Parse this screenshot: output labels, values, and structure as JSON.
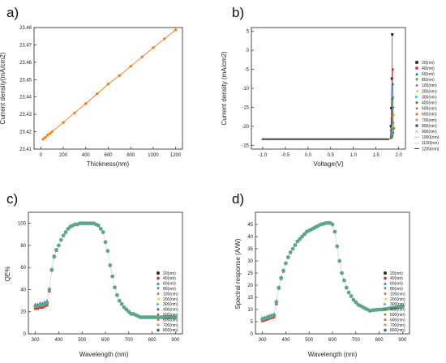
{
  "colors": {
    "orange": "#ee7a12",
    "cycle": [
      "#222222",
      "#e0302a",
      "#2f5fd6",
      "#2ca02c",
      "#9467bd",
      "#eec900",
      "#11bde0",
      "#7a7a3d",
      "#5a3b5a",
      "#c07a3a",
      "#d28fb0",
      "#2a6f6f",
      "#bfbfbf",
      "#e6b48a",
      "#c7c7c7"
    ]
  },
  "chart_data": [
    {
      "panel": "a)",
      "type": "line",
      "xlabel": "Thickness(nm)",
      "ylabel": "Current density(mA/cm2)",
      "xlim": [
        -60,
        1260
      ],
      "ylim": [
        23.41,
        23.48
      ],
      "xticks": [
        0,
        200,
        400,
        600,
        800,
        1000,
        1200
      ],
      "yticks": [
        23.41,
        23.42,
        23.43,
        23.44,
        23.45,
        23.46,
        23.47,
        23.48
      ],
      "x": [
        20,
        40,
        60,
        80,
        100,
        200,
        300,
        400,
        500,
        600,
        700,
        800,
        900,
        1000,
        1100,
        1200
      ],
      "y": [
        23.4157,
        23.4167,
        23.4179,
        23.4189,
        23.42,
        23.4253,
        23.4308,
        23.4362,
        23.4418,
        23.4475,
        23.4523,
        23.4577,
        23.463,
        23.4684,
        23.4735,
        23.4787
      ]
    },
    {
      "panel": "b)",
      "type": "scatter",
      "xlabel": "Voltage(V)",
      "ylabel": "Current density (mA/cm2)",
      "xlim": [
        -1.25,
        2.15
      ],
      "ylim": [
        -26,
        6
      ],
      "xticks": [
        -1.0,
        -0.5,
        0.0,
        0.5,
        1.0,
        1.5,
        2.0
      ],
      "xtick_labels": [
        "-1.0",
        "-0.5",
        "0.0",
        "0.5",
        "1.0",
        "1.5",
        "2.0"
      ],
      "yticks": [
        5,
        0,
        -5,
        -10,
        -15,
        -20,
        -25
      ],
      "jsc": -23.4,
      "legend": [
        "20(nm)",
        "40(nm)",
        "60(nm)",
        "80(nm)",
        "100(nm)",
        "200(nm)",
        "300(nm)",
        "400(nm)",
        "500(nm)",
        "600(nm)",
        "700(nm)",
        "800(nm)",
        "900(nm)",
        "1000(nm)",
        "1100(nm)",
        "1200(nm)"
      ],
      "legend_markers": [
        "square",
        "circle",
        "triangle-up",
        "triangle-down",
        "diamond",
        "triangle-left",
        "triangle-right",
        "hexagon",
        "star",
        "pentagon",
        "octagon",
        "circle",
        "cross",
        "line",
        "line",
        "line"
      ],
      "turn_points_v": [
        1.86,
        1.87,
        1.875,
        1.88,
        1.885,
        1.89,
        1.895,
        1.9
      ],
      "max_current": [
        4.2,
        -5.0,
        -8.8,
        -12.5,
        -15.0,
        -17.0,
        -19.0,
        -20.5
      ]
    },
    {
      "panel": "c)",
      "type": "scatter",
      "xlabel": "Wavelength (nm)",
      "ylabel": "QE%",
      "xlim": [
        270,
        930
      ],
      "ylim": [
        0,
        110
      ],
      "xticks": [
        300,
        400,
        500,
        600,
        700,
        800,
        900
      ],
      "yticks": [
        0,
        20,
        40,
        60,
        80,
        100
      ],
      "legend": [
        "20(nm)",
        "40(nm)",
        "60(nm)",
        "80(nm)",
        "100(nm)",
        "200(nm)",
        "300(nm)",
        "400(nm)",
        "500(nm)",
        "600(nm)",
        "700(nm)",
        "800(nm)"
      ],
      "legend_markers": [
        "square",
        "circle",
        "triangle-up",
        "triangle-down",
        "diamond",
        "triangle-left",
        "triangle-right",
        "hexagon",
        "star",
        "pentagon",
        "octagon",
        "circle"
      ],
      "x": [
        300,
        310,
        320,
        330,
        340,
        350,
        360,
        370,
        380,
        390,
        400,
        410,
        420,
        430,
        440,
        450,
        460,
        470,
        480,
        490,
        500,
        510,
        520,
        530,
        540,
        550,
        560,
        570,
        580,
        590,
        600,
        610,
        620,
        630,
        640,
        650,
        660,
        670,
        680,
        690,
        700,
        710,
        720,
        730,
        740,
        750,
        760,
        770,
        780,
        790,
        800,
        810,
        820,
        830,
        840,
        850,
        860,
        870,
        880,
        890,
        900
      ],
      "y": [
        25,
        25,
        26,
        26,
        27,
        28,
        40,
        58,
        70,
        76,
        80,
        85,
        89,
        92,
        95,
        97,
        98,
        99,
        99,
        100,
        100,
        100,
        100,
        100,
        100,
        100,
        99,
        98,
        95,
        92,
        83,
        75,
        62,
        52,
        42,
        35,
        30,
        27,
        24,
        22,
        20,
        18,
        18,
        17,
        16,
        15,
        15,
        15,
        15,
        15,
        15,
        15,
        15,
        15,
        15,
        15,
        15,
        15,
        15,
        15,
        15
      ],
      "spread": [
        3,
        3,
        3,
        3,
        3,
        3,
        2,
        1,
        1,
        1,
        0,
        0,
        0,
        0,
        0,
        0,
        0,
        0,
        0,
        0,
        0,
        0,
        0,
        0,
        0,
        0,
        0,
        0,
        0,
        0,
        0,
        0,
        0,
        0,
        0,
        0,
        0,
        0,
        0,
        0,
        0,
        0,
        0,
        0,
        0,
        0,
        0,
        0,
        0,
        0,
        0,
        0,
        0,
        0,
        0,
        0,
        0,
        0,
        0,
        0,
        0
      ]
    },
    {
      "panel": "d)",
      "type": "scatter",
      "xlabel": "Wavelength (nm)",
      "ylabel": "Spectral response (A/W)",
      "xlim": [
        270,
        930
      ],
      "ylim": [
        0,
        50
      ],
      "xticks": [
        300,
        400,
        500,
        600,
        700,
        800,
        900
      ],
      "yticks": [
        0,
        5,
        10,
        15,
        20,
        25,
        30,
        35,
        40,
        45
      ],
      "legend": [
        "20(nm)",
        "40(nm)",
        "60(nm)",
        "80(nm)",
        "100(nm)",
        "200(nm)",
        "300(nm)",
        "400(nm)",
        "500(nm)",
        "600(nm)",
        "700(nm)",
        "800(nm)"
      ],
      "legend_markers": [
        "square",
        "circle",
        "triangle-up",
        "triangle-down",
        "diamond",
        "triangle-left",
        "triangle-right",
        "hexagon",
        "star",
        "pentagon",
        "octagon",
        "circle"
      ],
      "x": [
        300,
        310,
        320,
        330,
        340,
        350,
        360,
        370,
        380,
        390,
        400,
        410,
        420,
        430,
        440,
        450,
        460,
        470,
        480,
        490,
        500,
        510,
        520,
        530,
        540,
        550,
        560,
        570,
        580,
        590,
        600,
        610,
        620,
        630,
        640,
        650,
        660,
        670,
        680,
        690,
        700,
        710,
        720,
        730,
        740,
        750,
        760,
        770,
        780,
        790,
        800,
        810,
        820,
        830,
        840,
        850,
        860,
        870,
        880,
        890,
        900
      ],
      "y": [
        6,
        6.3,
        6.6,
        7,
        7.3,
        7.6,
        13,
        19,
        23,
        26,
        29,
        31.5,
        33.5,
        35,
        36.5,
        38,
        39,
        40,
        41,
        42,
        42.5,
        43,
        43.5,
        44,
        44.5,
        45,
        45.2,
        45.5,
        45.6,
        45.6,
        45,
        42,
        36,
        30,
        25,
        22,
        19,
        17,
        15.5,
        14,
        13,
        12,
        11.5,
        11,
        10.5,
        10,
        9.5,
        9.7,
        9.8,
        9.9,
        10,
        10,
        10.1,
        10.2,
        10.4,
        10.5,
        10.7,
        10.8,
        11,
        11.1,
        11.3
      ],
      "spread": [
        1,
        1,
        1,
        1,
        1,
        1,
        1,
        0.5,
        0.5,
        0.5,
        0,
        0,
        0,
        0,
        0,
        0,
        0,
        0,
        0,
        0,
        0,
        0,
        0,
        0,
        0,
        0,
        0,
        0,
        0,
        0,
        0,
        0,
        0,
        0,
        0,
        0,
        0,
        0,
        0,
        0,
        0,
        0,
        0,
        0,
        0,
        0,
        0,
        0,
        0,
        0,
        0,
        0,
        0,
        0,
        0,
        0,
        0,
        0,
        0,
        0,
        0
      ]
    }
  ]
}
